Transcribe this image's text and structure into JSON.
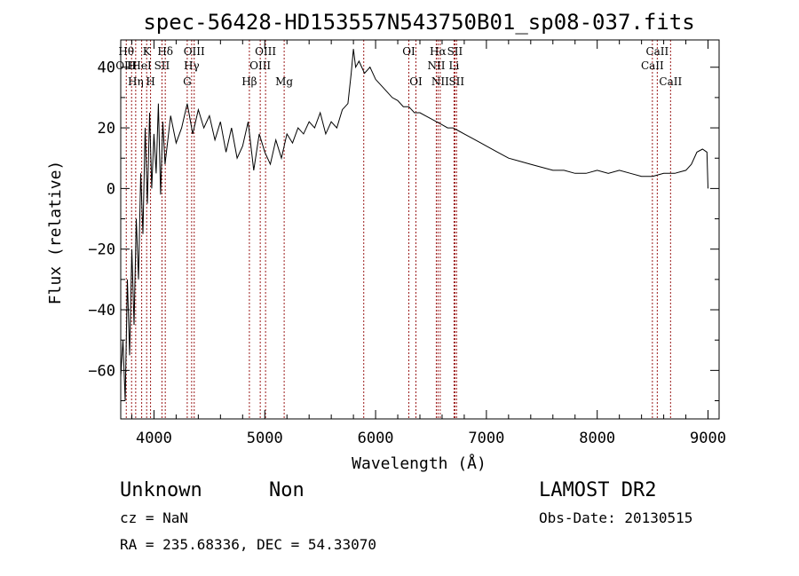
{
  "chart_data": {
    "type": "line",
    "title": "spec-56428-HD153557N543750B01_sp08-037.fits",
    "xlabel": "Wavelength (Å)",
    "ylabel": "Flux (relative)",
    "xlim": [
      3700,
      9100
    ],
    "ylim": [
      -76,
      49
    ],
    "xticks": [
      {
        "value": 4000,
        "label": "4000"
      },
      {
        "value": 5000,
        "label": "5000"
      },
      {
        "value": 6000,
        "label": "6000"
      },
      {
        "value": 7000,
        "label": "7000"
      },
      {
        "value": 8000,
        "label": "8000"
      },
      {
        "value": 9000,
        "label": "9000"
      }
    ],
    "yticks": [
      {
        "value": -60,
        "label": "−60"
      },
      {
        "value": -40,
        "label": "−40"
      },
      {
        "value": -20,
        "label": "−20"
      },
      {
        "value": 0,
        "label": "0"
      },
      {
        "value": 20,
        "label": "20"
      },
      {
        "value": 40,
        "label": "40"
      }
    ],
    "series": [
      {
        "x": [
          3700,
          3720,
          3740,
          3760,
          3780,
          3800,
          3820,
          3840,
          3860,
          3880,
          3900,
          3920,
          3940,
          3960,
          3980,
          4000,
          4020,
          4040,
          4060,
          4080,
          4100,
          4150,
          4200,
          4250,
          4300,
          4350,
          4400,
          4450,
          4500,
          4550,
          4600,
          4650,
          4700,
          4750,
          4800,
          4850,
          4900,
          4950,
          5000,
          5050,
          5100,
          5150,
          5200,
          5250,
          5300,
          5350,
          5400,
          5450,
          5500,
          5550,
          5600,
          5650,
          5700,
          5750,
          5780,
          5800,
          5820,
          5850,
          5900,
          5950,
          6000,
          6050,
          6100,
          6150,
          6200,
          6250,
          6300,
          6350,
          6400,
          6450,
          6500,
          6550,
          6600,
          6650,
          6700,
          6750,
          6800,
          6850,
          6900,
          6950,
          7000,
          7100,
          7200,
          7300,
          7400,
          7500,
          7600,
          7700,
          7800,
          7900,
          8000,
          8100,
          8200,
          8300,
          8400,
          8500,
          8600,
          8700,
          8800,
          8850,
          8900,
          8950,
          8990,
          9000
        ],
        "y": [
          -62,
          -50,
          -70,
          -30,
          -55,
          -20,
          -45,
          -10,
          -30,
          5,
          -15,
          20,
          -5,
          25,
          0,
          18,
          5,
          28,
          -2,
          22,
          8,
          24,
          15,
          20,
          28,
          18,
          26,
          20,
          24,
          16,
          22,
          12,
          20,
          10,
          14,
          22,
          6,
          18,
          12,
          8,
          16,
          10,
          18,
          15,
          20,
          18,
          22,
          20,
          25,
          18,
          22,
          20,
          26,
          28,
          38,
          46,
          40,
          42,
          38,
          40,
          36,
          34,
          32,
          30,
          29,
          27,
          27,
          25,
          25,
          24,
          23,
          22,
          21,
          20,
          20,
          19,
          18,
          17,
          16,
          15,
          14,
          12,
          10,
          9,
          8,
          7,
          6,
          6,
          5,
          5,
          6,
          5,
          6,
          5,
          4,
          4,
          5,
          5,
          6,
          8,
          12,
          13,
          12,
          0
        ]
      }
    ],
    "line_annotations": [
      {
        "x": 3750,
        "labels": [
          "Hθ",
          "OIII"
        ]
      },
      {
        "x": 3798,
        "labels": [
          "",
          "H"
        ]
      },
      {
        "x": 3835,
        "labels": [
          "",
          "",
          "Hη"
        ]
      },
      {
        "x": 3889,
        "labels": [
          "",
          "HeI"
        ]
      },
      {
        "x": 3934,
        "labels": [
          "K"
        ]
      },
      {
        "x": 3969,
        "labels": [
          "",
          "",
          "H"
        ]
      },
      {
        "x": 4072,
        "labels": [
          "",
          "SII"
        ]
      },
      {
        "x": 4102,
        "labels": [
          "Hδ"
        ]
      },
      {
        "x": 4300,
        "labels": [
          "",
          "",
          "G"
        ]
      },
      {
        "x": 4340,
        "labels": [
          "",
          "Hγ"
        ]
      },
      {
        "x": 4363,
        "labels": [
          "OIII"
        ]
      },
      {
        "x": 4861,
        "labels": [
          "",
          "",
          "Hβ"
        ]
      },
      {
        "x": 4959,
        "labels": [
          "",
          "OIII"
        ]
      },
      {
        "x": 5007,
        "labels": [
          "OIII"
        ]
      },
      {
        "x": 5175,
        "labels": [
          "",
          "",
          "Mg"
        ]
      },
      {
        "x": 5893,
        "labels": []
      },
      {
        "x": 6300,
        "labels": [
          "OI"
        ]
      },
      {
        "x": 6364,
        "labels": [
          "",
          "",
          "OI"
        ]
      },
      {
        "x": 6548,
        "labels": [
          "",
          "NII"
        ]
      },
      {
        "x": 6563,
        "labels": [
          "Hα"
        ]
      },
      {
        "x": 6583,
        "labels": [
          "",
          "",
          "NII"
        ]
      },
      {
        "x": 6708,
        "labels": [
          "",
          "Li"
        ]
      },
      {
        "x": 6716,
        "labels": [
          "SII"
        ]
      },
      {
        "x": 6731,
        "labels": [
          "",
          "",
          "SII"
        ]
      },
      {
        "x": 8498,
        "labels": [
          "",
          "CaII"
        ]
      },
      {
        "x": 8542,
        "labels": [
          "CaII"
        ]
      },
      {
        "x": 8662,
        "labels": [
          "",
          "",
          "CaII"
        ]
      }
    ]
  },
  "info": {
    "object_name": "Unknown",
    "class": "Non",
    "cz": "cz = NaN",
    "coords": "RA = 235.68336, DEC =  54.33070",
    "survey": "LAMOST DR2",
    "obs_date": "Obs-Date: 20130515"
  }
}
